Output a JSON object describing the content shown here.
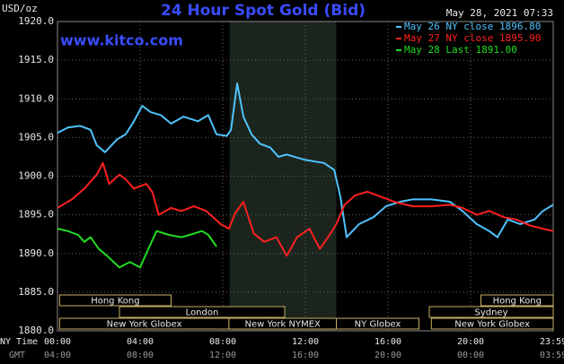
{
  "chart_data": {
    "type": "line",
    "title": "24 Hour Spot Gold (Bid)",
    "title_color": "#3a4cff",
    "timestamp": "May 28, 2021 07:33",
    "website": "www.kitco.com",
    "y_axis_label": "USD/oz",
    "x_axis_label": "NY Time",
    "x2_axis_label": "GMT",
    "xlim": [
      0,
      24
    ],
    "ylim": [
      1880,
      1920
    ],
    "yticks": [
      {
        "value": 1880,
        "label": "1880.0"
      },
      {
        "value": 1885,
        "label": "1885.0"
      },
      {
        "value": 1890,
        "label": "1890.0"
      },
      {
        "value": 1895,
        "label": "1895.0"
      },
      {
        "value": 1900,
        "label": "1900.0"
      },
      {
        "value": 1905,
        "label": "1905.0"
      },
      {
        "value": 1910,
        "label": "1910.0"
      },
      {
        "value": 1915,
        "label": "1915.0"
      },
      {
        "value": 1920,
        "label": "1920.0"
      }
    ],
    "xticks": [
      {
        "value": 0,
        "label": "00:00"
      },
      {
        "value": 4,
        "label": "04:00"
      },
      {
        "value": 8,
        "label": "08:00"
      },
      {
        "value": 12,
        "label": "12:00"
      },
      {
        "value": 16,
        "label": "16:00"
      },
      {
        "value": 20,
        "label": "20:00"
      },
      {
        "value": 24,
        "label": "23:59"
      }
    ],
    "x2_tick_labels": [
      "04:00",
      "08:00",
      "12:00",
      "16:00",
      "20:00",
      "00:00",
      "03:59"
    ],
    "grid": true,
    "shade": {
      "x": [
        8.33,
        13.5
      ],
      "color": "#1b251d"
    },
    "sessions": [
      [
        {
          "label": "Hong Kong",
          "start": 0.1,
          "end": 5.5
        },
        {
          "label": "Hong Kong",
          "start": 20.5,
          "end": 24
        }
      ],
      [
        {
          "label": "London",
          "start": 3,
          "end": 11
        },
        {
          "label": "Sydney",
          "start": 18,
          "end": 24
        }
      ],
      [
        {
          "label": "New York Globex",
          "start": 0.1,
          "end": 8.3
        },
        {
          "label": "New York NYMEX",
          "start": 8.3,
          "end": 13.5
        },
        {
          "label": "NY Globex",
          "start": 13.5,
          "end": 17.5
        },
        {
          "label": "New York Globex",
          "start": 18.1,
          "end": 24
        }
      ]
    ],
    "series": [
      {
        "name": "May 26 NY close 1896.80",
        "color": "#4fc3ff",
        "x": [
          0,
          0.5,
          1.1,
          1.6,
          1.9,
          2.3,
          2.9,
          3.3,
          3.7,
          4.1,
          4.5,
          5.0,
          5.5,
          6.1,
          6.8,
          7.3,
          7.7,
          8.2,
          8.4,
          8.7,
          9.0,
          9.4,
          9.8,
          10.3,
          10.7,
          11.1,
          12.0,
          12.9,
          13.4,
          13.7,
          14.0,
          14.6,
          15.3,
          15.9,
          16.6,
          17.2,
          18.1,
          19.0,
          19.6,
          20.3,
          20.9,
          21.3,
          21.8,
          22.4,
          23.1,
          23.5,
          24.0
        ],
        "values": [
          1905.6,
          1906.3,
          1906.5,
          1906.0,
          1904.0,
          1903.1,
          1904.8,
          1905.4,
          1907.1,
          1909.1,
          1908.3,
          1907.9,
          1906.8,
          1907.7,
          1907.1,
          1907.9,
          1905.4,
          1905.2,
          1906.0,
          1912.0,
          1907.7,
          1905.4,
          1904.2,
          1903.7,
          1902.5,
          1902.8,
          1902.1,
          1901.7,
          1900.8,
          1897.3,
          1892.1,
          1893.8,
          1894.7,
          1896.1,
          1896.7,
          1897.0,
          1897.0,
          1896.7,
          1895.5,
          1893.8,
          1892.9,
          1892.1,
          1894.4,
          1893.8,
          1894.4,
          1895.5,
          1896.3
        ]
      },
      {
        "name": "May 27 NY close 1895.90",
        "color": "#ff2020",
        "x": [
          0,
          0.7,
          1.3,
          1.9,
          2.2,
          2.5,
          3.0,
          3.3,
          3.7,
          4.3,
          4.6,
          4.9,
          5.5,
          6.0,
          6.6,
          7.2,
          7.9,
          8.3,
          8.6,
          9.0,
          9.5,
          10.0,
          10.6,
          11.1,
          11.6,
          12.2,
          12.7,
          13.1,
          13.5,
          13.9,
          14.4,
          15.0,
          15.7,
          16.3,
          17.2,
          18.1,
          19.0,
          19.6,
          20.3,
          20.9,
          21.6,
          22.2,
          22.9,
          23.5,
          24.0
        ],
        "values": [
          1895.9,
          1897.0,
          1898.4,
          1900.2,
          1901.7,
          1899.0,
          1900.2,
          1899.6,
          1898.4,
          1899.0,
          1897.9,
          1895.0,
          1895.9,
          1895.5,
          1896.1,
          1895.5,
          1893.8,
          1893.2,
          1895.2,
          1896.7,
          1892.6,
          1891.5,
          1892.1,
          1889.7,
          1892.1,
          1893.2,
          1890.6,
          1892.1,
          1893.8,
          1896.3,
          1897.5,
          1898.0,
          1897.3,
          1896.7,
          1896.1,
          1896.1,
          1896.3,
          1895.9,
          1895.0,
          1895.5,
          1894.7,
          1894.4,
          1893.6,
          1893.2,
          1892.9
        ]
      },
      {
        "name": "May 28 Last 1891.00",
        "color": "#22dd22",
        "x": [
          0,
          0.5,
          1.0,
          1.3,
          1.6,
          2.0,
          2.4,
          3.0,
          3.5,
          4.0,
          4.4,
          4.8,
          5.4,
          6.0,
          6.4,
          7.0,
          7.3,
          7.7
        ],
        "values": [
          1893.2,
          1892.9,
          1892.4,
          1891.5,
          1892.1,
          1890.6,
          1889.7,
          1888.2,
          1888.9,
          1888.2,
          1890.6,
          1892.9,
          1892.4,
          1892.1,
          1892.4,
          1892.9,
          1892.4,
          1890.9
        ]
      }
    ]
  }
}
